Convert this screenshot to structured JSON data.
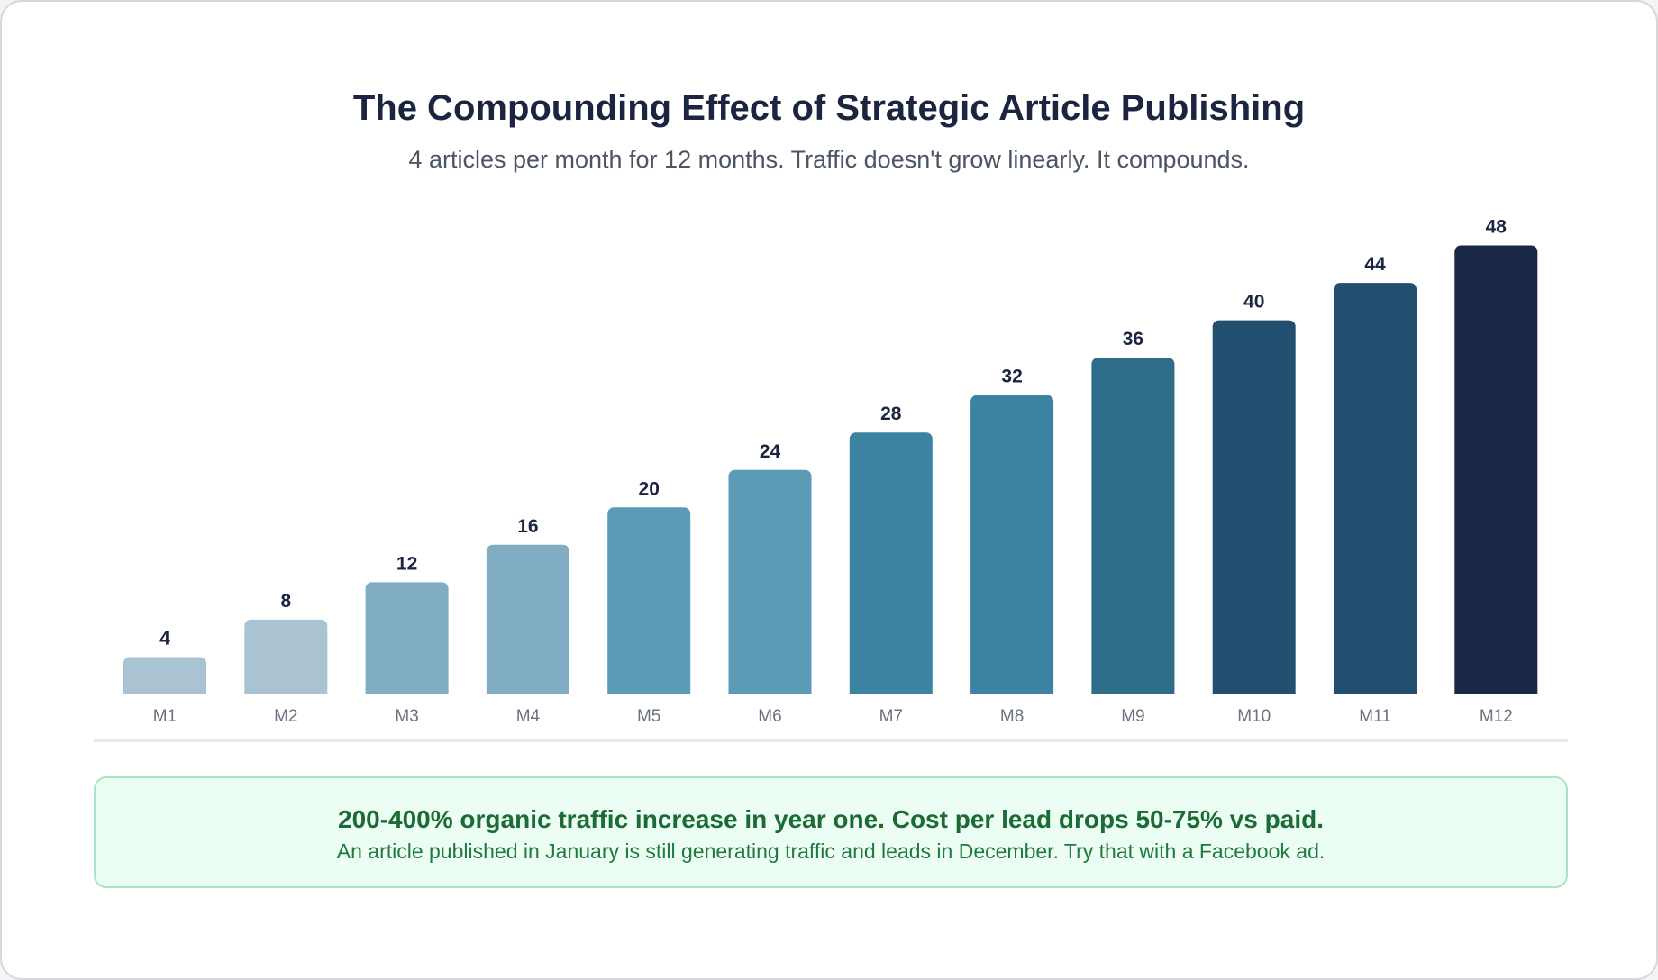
{
  "header": {
    "title": "The Compounding Effect of Strategic Article Publishing",
    "subtitle": "4 articles per month for 12 months. Traffic doesn't grow linearly. It compounds."
  },
  "chart_data": {
    "type": "bar",
    "title": "The Compounding Effect of Strategic Article Publishing",
    "subtitle": "4 articles per month for 12 months. Traffic doesn't grow linearly. It compounds.",
    "categories": [
      "M1",
      "M2",
      "M3",
      "M4",
      "M5",
      "M6",
      "M7",
      "M8",
      "M9",
      "M10",
      "M11",
      "M12"
    ],
    "values": [
      4,
      8,
      12,
      16,
      20,
      24,
      28,
      32,
      36,
      40,
      44,
      48
    ],
    "ylim": [
      0,
      52
    ],
    "grid": false,
    "legend": "none",
    "data_labels": true,
    "colors": [
      "#a9c3d2",
      "#a9c3d2",
      "#80adc3",
      "#80adc3",
      "#5b9bb5",
      "#5b9bb5",
      "#3b83a0",
      "#3b83a0",
      "#2d6d8a",
      "#224f6f",
      "#224f6f",
      "#1b2845"
    ],
    "label_color": "#1b2540",
    "tick_color": "#6b7280"
  },
  "callout": {
    "headline": "200-400% organic traffic increase in year one. Cost per lead drops 50-75% vs paid.",
    "body": "An article published in January is still generating traffic and leads in December. Try that with a Facebook ad."
  }
}
